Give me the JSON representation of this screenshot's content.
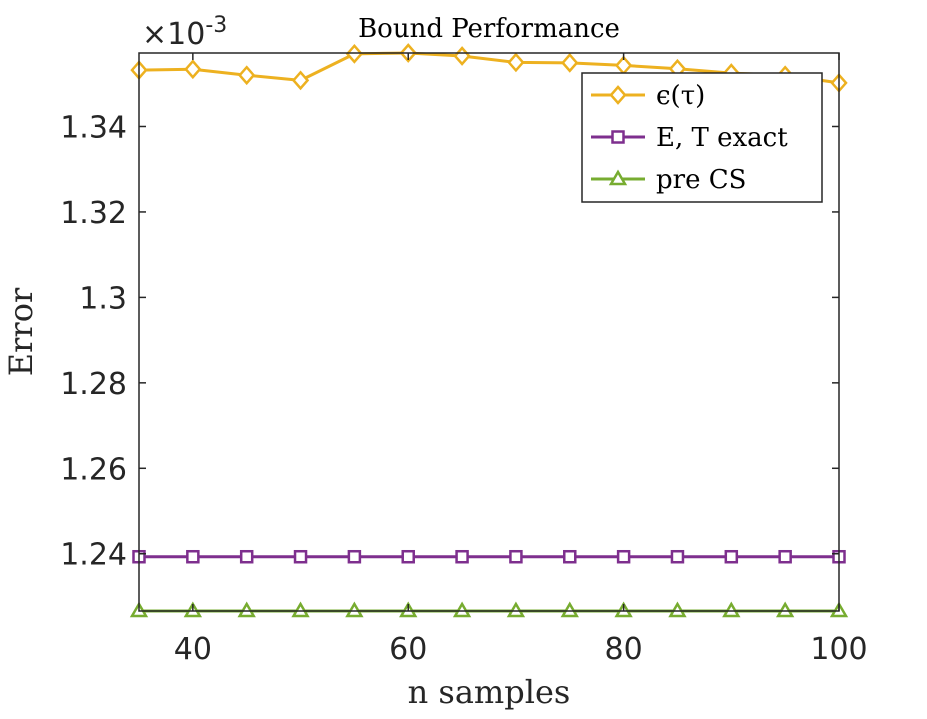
{
  "chart_data": {
    "type": "line",
    "title": "Bound Performance",
    "xlabel": "n samples",
    "ylabel": "Error",
    "exponent_label": "×10",
    "exponent_power": "-3",
    "xlim": [
      35,
      100
    ],
    "ylim": [
      1.2266,
      1.3572
    ],
    "xticks": [
      40,
      60,
      80,
      100
    ],
    "xtick_labels": [
      "40",
      "60",
      "80",
      "100"
    ],
    "yticks": [
      1.24,
      1.26,
      1.28,
      1.3,
      1.32,
      1.34
    ],
    "ytick_labels": [
      "1.24",
      "1.26",
      "1.28",
      "1.3",
      "1.32",
      "1.34"
    ],
    "grid": false,
    "legend_position": "top-right",
    "x": [
      35,
      40,
      45,
      50,
      55,
      60,
      65,
      70,
      75,
      80,
      85,
      90,
      95,
      100
    ],
    "series": [
      {
        "name": "ϵ(τ)",
        "color": "#EDB120",
        "marker": "diamond",
        "values": [
          1.3532,
          1.3534,
          1.352,
          1.3508,
          1.357,
          1.3572,
          1.3565,
          1.355,
          1.3549,
          1.3543,
          1.3535,
          1.3525,
          1.352,
          1.3502
        ]
      },
      {
        "name": "E, T exact",
        "color": "#7E2F8E",
        "marker": "square",
        "values": [
          1.2393,
          1.2393,
          1.2393,
          1.2393,
          1.2393,
          1.2393,
          1.2393,
          1.2393,
          1.2393,
          1.2393,
          1.2393,
          1.2393,
          1.2393,
          1.2393
        ]
      },
      {
        "name": "pre CS",
        "color": "#77AC30",
        "marker": "triangle",
        "values": [
          1.2266,
          1.2266,
          1.2266,
          1.2266,
          1.2266,
          1.2266,
          1.2266,
          1.2266,
          1.2266,
          1.2266,
          1.2266,
          1.2266,
          1.2266,
          1.2266
        ]
      }
    ]
  }
}
